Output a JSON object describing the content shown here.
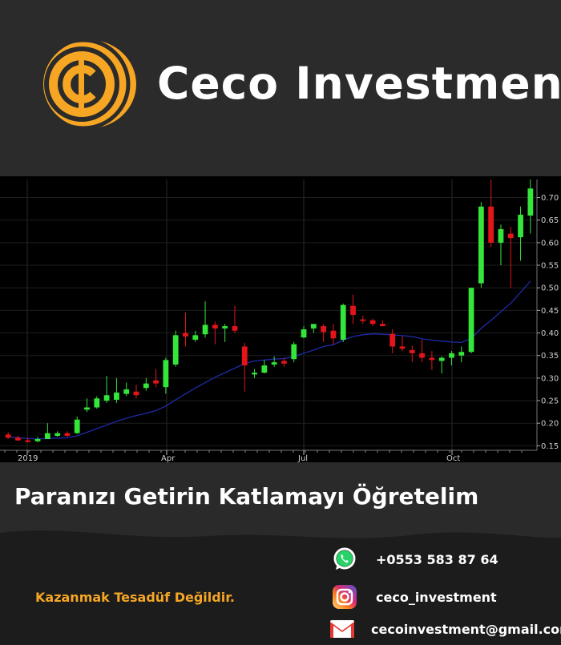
{
  "brand": {
    "name": "Ceco Investment",
    "logo_icon": "coin-cent-icon",
    "accent": "#f6a623"
  },
  "tagline": "Paranızı Getirin Katlamayı Öğretelim",
  "slogan": "Kazanmak Tesadüf Değildir.",
  "contacts": [
    {
      "icon": "whatsapp-icon",
      "text": "+0553 583 87 64"
    },
    {
      "icon": "instagram-icon",
      "text": "ceco_investment"
    },
    {
      "icon": "gmail-icon",
      "text": "cecoinvestment@gmail.com"
    }
  ],
  "chart_data": {
    "type": "candlestick",
    "title": "",
    "xlabel": "",
    "ylabel": "",
    "x_ticks": [
      "2019",
      "Apr",
      "Jul",
      "Oct"
    ],
    "y_ticks": [
      "0.15",
      "0.20",
      "0.25",
      "0.30",
      "0.35",
      "0.40",
      "0.45",
      "0.50",
      "0.55",
      "0.60",
      "0.65",
      "0.70"
    ],
    "ylim": [
      0.14,
      0.74
    ],
    "up_color": "#34e53a",
    "down_color": "#e5141b",
    "ma_color": "#1f2aa8",
    "grid": true,
    "candles": [
      [
        0.175,
        0.18,
        0.165,
        0.168
      ],
      [
        0.168,
        0.172,
        0.16,
        0.162
      ],
      [
        0.162,
        0.168,
        0.158,
        0.16
      ],
      [
        0.16,
        0.17,
        0.158,
        0.165
      ],
      [
        0.165,
        0.2,
        0.165,
        0.178
      ],
      [
        0.172,
        0.182,
        0.17,
        0.178
      ],
      [
        0.178,
        0.182,
        0.17,
        0.172
      ],
      [
        0.178,
        0.215,
        0.176,
        0.208
      ],
      [
        0.23,
        0.255,
        0.225,
        0.235
      ],
      [
        0.235,
        0.26,
        0.232,
        0.255
      ],
      [
        0.25,
        0.305,
        0.245,
        0.262
      ],
      [
        0.252,
        0.3,
        0.245,
        0.268
      ],
      [
        0.265,
        0.29,
        0.26,
        0.275
      ],
      [
        0.27,
        0.285,
        0.255,
        0.262
      ],
      [
        0.278,
        0.3,
        0.272,
        0.288
      ],
      [
        0.295,
        0.32,
        0.28,
        0.288
      ],
      [
        0.28,
        0.345,
        0.265,
        0.34
      ],
      [
        0.33,
        0.405,
        0.325,
        0.395
      ],
      [
        0.4,
        0.445,
        0.37,
        0.392
      ],
      [
        0.385,
        0.405,
        0.38,
        0.395
      ],
      [
        0.397,
        0.47,
        0.39,
        0.418
      ],
      [
        0.418,
        0.425,
        0.375,
        0.41
      ],
      [
        0.41,
        0.42,
        0.38,
        0.415
      ],
      [
        0.415,
        0.46,
        0.4,
        0.405
      ],
      [
        0.37,
        0.378,
        0.27,
        0.328
      ],
      [
        0.308,
        0.32,
        0.3,
        0.312
      ],
      [
        0.312,
        0.34,
        0.31,
        0.328
      ],
      [
        0.33,
        0.348,
        0.325,
        0.335
      ],
      [
        0.338,
        0.345,
        0.325,
        0.332
      ],
      [
        0.342,
        0.38,
        0.335,
        0.375
      ],
      [
        0.39,
        0.415,
        0.388,
        0.408
      ],
      [
        0.41,
        0.42,
        0.4,
        0.42
      ],
      [
        0.415,
        0.42,
        0.38,
        0.402
      ],
      [
        0.405,
        0.42,
        0.375,
        0.388
      ],
      [
        0.385,
        0.465,
        0.38,
        0.462
      ],
      [
        0.46,
        0.485,
        0.42,
        0.44
      ],
      [
        0.43,
        0.438,
        0.42,
        0.428
      ],
      [
        0.428,
        0.432,
        0.415,
        0.42
      ],
      [
        0.42,
        0.428,
        0.415,
        0.415
      ],
      [
        0.398,
        0.408,
        0.355,
        0.37
      ],
      [
        0.37,
        0.392,
        0.36,
        0.365
      ],
      [
        0.362,
        0.372,
        0.335,
        0.355
      ],
      [
        0.355,
        0.385,
        0.335,
        0.345
      ],
      [
        0.345,
        0.36,
        0.318,
        0.34
      ],
      [
        0.338,
        0.348,
        0.31,
        0.345
      ],
      [
        0.345,
        0.36,
        0.328,
        0.355
      ],
      [
        0.35,
        0.37,
        0.335,
        0.358
      ],
      [
        0.358,
        0.5,
        0.355,
        0.5
      ],
      [
        0.51,
        0.69,
        0.5,
        0.68
      ],
      [
        0.68,
        0.74,
        0.59,
        0.6
      ],
      [
        0.6,
        0.64,
        0.55,
        0.63
      ],
      [
        0.62,
        0.635,
        0.5,
        0.61
      ],
      [
        0.612,
        0.68,
        0.56,
        0.662
      ],
      [
        0.66,
        0.74,
        0.62,
        0.72
      ]
    ],
    "moving_average": [
      0.17,
      0.168,
      0.166,
      0.165,
      0.166,
      0.167,
      0.168,
      0.172,
      0.18,
      0.188,
      0.196,
      0.204,
      0.211,
      0.217,
      0.222,
      0.228,
      0.238,
      0.252,
      0.265,
      0.278,
      0.29,
      0.302,
      0.312,
      0.322,
      0.332,
      0.338,
      0.34,
      0.342,
      0.343,
      0.348,
      0.355,
      0.362,
      0.37,
      0.374,
      0.384,
      0.392,
      0.396,
      0.398,
      0.397,
      0.396,
      0.394,
      0.392,
      0.387,
      0.384,
      0.382,
      0.38,
      0.379,
      0.388,
      0.41,
      0.428,
      0.447,
      0.466,
      0.49,
      0.515
    ]
  }
}
